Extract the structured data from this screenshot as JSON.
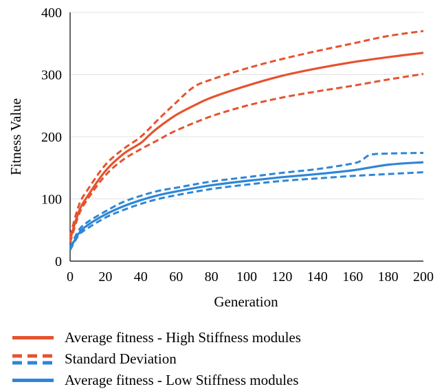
{
  "chart_data": {
    "type": "line",
    "title": "",
    "xlabel": "Generation",
    "ylabel": "Fitness Value",
    "xlim": [
      0,
      200
    ],
    "ylim": [
      0,
      400
    ],
    "xticks": [
      0,
      20,
      40,
      60,
      80,
      100,
      120,
      140,
      160,
      180,
      200
    ],
    "yticks": [
      0,
      100,
      200,
      300,
      400
    ],
    "x_tick_labels": [
      "0",
      "20",
      "40",
      "60",
      "80",
      "100",
      "120",
      "140",
      "160",
      "180",
      "200"
    ],
    "y_tick_labels": [
      "0",
      "100",
      "200",
      "300",
      "400"
    ],
    "grid": "horizontal",
    "legend_position": "bottom",
    "series": [
      {
        "name": "Average fitness - High Stiffness modules",
        "role": "mean",
        "color": "#E5532F",
        "style": "solid",
        "x": [
          0,
          5,
          10,
          20,
          30,
          40,
          45,
          50,
          60,
          70,
          80,
          100,
          120,
          140,
          160,
          180,
          200
        ],
        "values": [
          35,
          80,
          105,
          145,
          172,
          190,
          203,
          215,
          235,
          250,
          263,
          282,
          298,
          310,
          320,
          328,
          335
        ]
      },
      {
        "name": "Standard Deviation",
        "role": "upper",
        "color": "#E5532F",
        "style": "dashed",
        "x": [
          0,
          5,
          10,
          20,
          30,
          40,
          50,
          60,
          70,
          80,
          100,
          120,
          140,
          160,
          180,
          200
        ],
        "values": [
          40,
          90,
          115,
          155,
          180,
          200,
          228,
          255,
          280,
          292,
          310,
          325,
          338,
          350,
          362,
          370
        ]
      },
      {
        "role": "lower",
        "color": "#E5532F",
        "style": "dashed",
        "x": [
          0,
          5,
          10,
          20,
          30,
          40,
          50,
          60,
          80,
          100,
          120,
          140,
          160,
          180,
          200
        ],
        "values": [
          30,
          75,
          100,
          138,
          163,
          180,
          195,
          210,
          233,
          250,
          263,
          273,
          282,
          292,
          301
        ]
      },
      {
        "name": "Average fitness - Low Stiffness modules",
        "role": "mean",
        "color": "#2E86D6",
        "style": "solid",
        "x": [
          0,
          5,
          10,
          20,
          30,
          40,
          50,
          60,
          80,
          100,
          120,
          140,
          160,
          180,
          200
        ],
        "values": [
          20,
          45,
          58,
          75,
          88,
          98,
          106,
          112,
          122,
          129,
          135,
          140,
          146,
          155,
          159
        ]
      },
      {
        "role": "upper",
        "color": "#2E86D6",
        "style": "dashed",
        "x": [
          0,
          5,
          10,
          20,
          30,
          40,
          50,
          60,
          80,
          100,
          120,
          140,
          160,
          165,
          170,
          180,
          200
        ],
        "values": [
          22,
          50,
          63,
          80,
          95,
          105,
          113,
          118,
          128,
          135,
          142,
          148,
          157,
          162,
          171,
          173,
          174
        ]
      },
      {
        "role": "lower",
        "color": "#2E86D6",
        "style": "dashed",
        "x": [
          0,
          5,
          10,
          20,
          30,
          40,
          50,
          60,
          80,
          100,
          120,
          140,
          160,
          180,
          200
        ],
        "values": [
          18,
          42,
          53,
          70,
          82,
          92,
          100,
          106,
          116,
          123,
          129,
          133,
          137,
          140,
          143
        ]
      }
    ],
    "legend": [
      {
        "label": "Average fitness - High Stiffness modules",
        "color": "#E5532F",
        "style": "solid"
      },
      {
        "label": "Standard Deviation",
        "color": "#E5532F",
        "style": "dashed-double",
        "color2": "#2E86D6"
      },
      {
        "label": "Average fitness - Low Stiffness modules",
        "color": "#2E86D6",
        "style": "solid"
      }
    ]
  }
}
